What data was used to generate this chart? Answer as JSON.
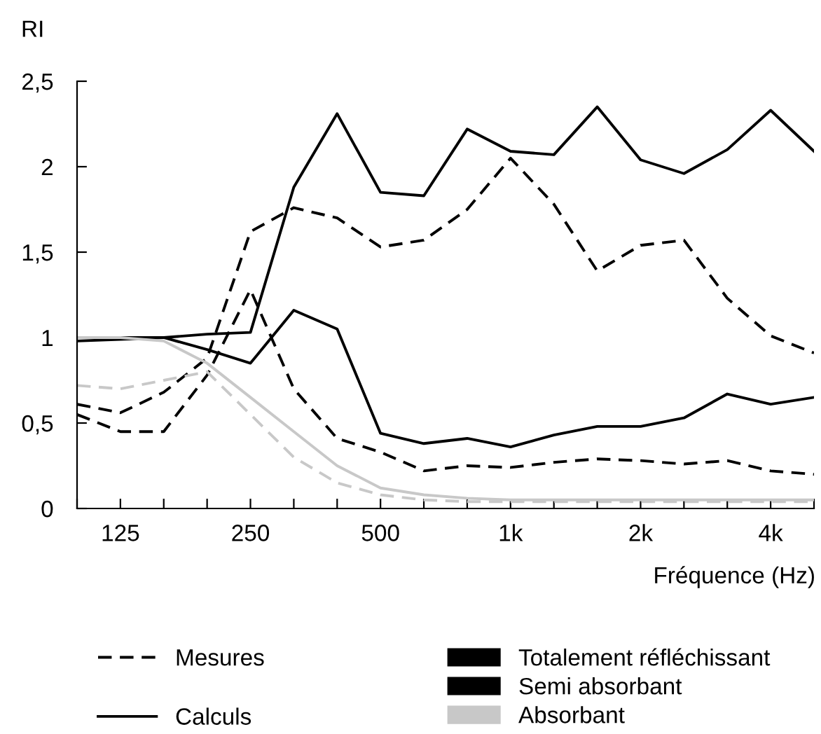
{
  "chart_data": {
    "type": "line",
    "ylabel": "RI",
    "xlabel": "Fréquence (Hz)",
    "categories": [
      null,
      "125",
      null,
      null,
      "250",
      null,
      null,
      "500",
      null,
      null,
      "1k",
      null,
      null,
      "2k",
      null,
      null,
      "4k",
      null
    ],
    "ylim": [
      0,
      2.5
    ],
    "yticks": [
      0,
      {
        "value": 0.5,
        "label": "0,5"
      },
      1,
      {
        "value": 1.5,
        "label": "1,5"
      },
      2,
      {
        "value": 2.5,
        "label": "2,5"
      }
    ],
    "series": [
      {
        "name": "Totalement réfléchissant",
        "color": "#000000",
        "line_style": "solid",
        "values": [
          1.0,
          1.0,
          1.0,
          1.02,
          1.03,
          1.88,
          2.31,
          1.85,
          1.83,
          2.22,
          2.09,
          2.07,
          2.35,
          2.04,
          1.96,
          2.1,
          2.33,
          2.09
        ]
      },
      {
        "color": "#000000",
        "line_style": "dashed",
        "values": [
          0.61,
          0.56,
          0.68,
          0.88,
          1.62,
          1.76,
          1.7,
          1.53,
          1.57,
          1.75,
          2.05,
          1.78,
          1.39,
          1.54,
          1.57,
          1.23,
          1.01,
          0.91
        ]
      },
      {
        "name": "Semi absorbant",
        "color": "#000000",
        "line_style": "solid",
        "values": [
          0.98,
          0.99,
          1.0,
          0.93,
          0.85,
          1.16,
          1.05,
          0.44,
          0.38,
          0.41,
          0.36,
          0.43,
          0.48,
          0.48,
          0.53,
          0.67,
          0.61,
          0.65
        ]
      },
      {
        "color": "#000000",
        "line_style": "dashed",
        "values": [
          0.55,
          0.45,
          0.45,
          0.78,
          1.28,
          0.7,
          0.41,
          0.33,
          0.22,
          0.25,
          0.24,
          0.27,
          0.29,
          0.28,
          0.26,
          0.28,
          0.22,
          0.2
        ]
      },
      {
        "name": "Absorbant",
        "color": "#c8c8c8",
        "line_style": "solid",
        "values": [
          1.0,
          1.0,
          0.98,
          0.85,
          0.65,
          0.45,
          0.25,
          0.12,
          0.08,
          0.06,
          0.05,
          0.05,
          0.05,
          0.05,
          0.05,
          0.05,
          0.05,
          0.05
        ]
      },
      {
        "color": "#c8c8c8",
        "line_style": "dashed",
        "values": [
          0.72,
          0.7,
          0.75,
          0.8,
          0.55,
          0.3,
          0.15,
          0.08,
          0.05,
          0.04,
          0.04,
          0.04,
          0.04,
          0.04,
          0.04,
          0.04,
          0.04,
          0.04
        ]
      }
    ],
    "annotations": [
      "Mesures",
      "Calculs"
    ],
    "legend": "bottom",
    "grid": false,
    "marker": "none"
  }
}
